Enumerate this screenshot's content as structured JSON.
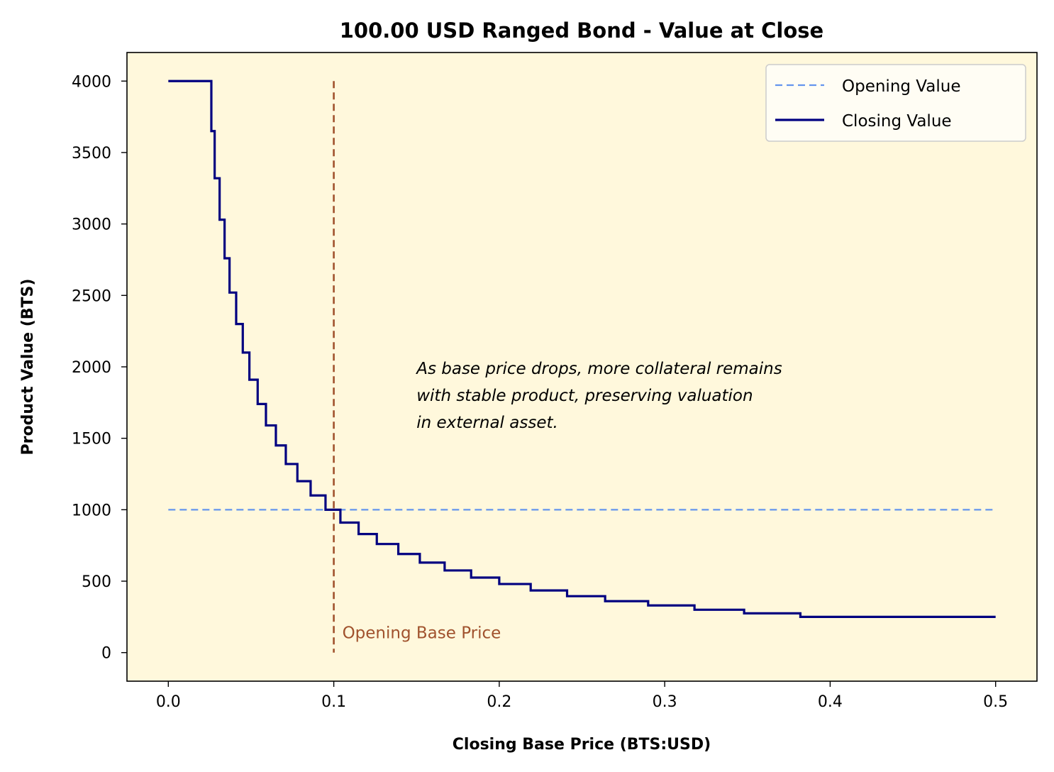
{
  "chart_data": {
    "type": "line",
    "title": "100.00 USD Ranged Bond - Value at Close",
    "xlabel": "Closing Base Price (BTS:USD)",
    "ylabel": "Product Value (BTS)",
    "xlim": [
      -0.025,
      0.525
    ],
    "ylim": [
      -200,
      4200
    ],
    "x_ticks": [
      0.0,
      0.1,
      0.2,
      0.3,
      0.4,
      0.5
    ],
    "x_tick_labels": [
      "0.0",
      "0.1",
      "0.2",
      "0.3",
      "0.4",
      "0.5"
    ],
    "y_ticks": [
      0,
      500,
      1000,
      1500,
      2000,
      2500,
      3000,
      3500,
      4000
    ],
    "y_tick_labels": [
      "0",
      "500",
      "1000",
      "1500",
      "2000",
      "2500",
      "3000",
      "3500",
      "4000"
    ],
    "legend": {
      "placement": "top-right",
      "entries": [
        "Opening Value",
        "Closing Value"
      ]
    },
    "background_color": "#fff8dc",
    "grid": false,
    "series": [
      {
        "name": "Opening Value",
        "style": "dashed",
        "color": "#6495ed",
        "x": [
          0.0,
          0.5
        ],
        "y": [
          1000,
          1000
        ]
      },
      {
        "name": "Closing Value",
        "style": "steps-post",
        "color": "#000080",
        "x": [
          0.0,
          0.026,
          0.028,
          0.031,
          0.034,
          0.037,
          0.041,
          0.045,
          0.049,
          0.054,
          0.059,
          0.065,
          0.071,
          0.078,
          0.086,
          0.095,
          0.104,
          0.115,
          0.126,
          0.139,
          0.152,
          0.167,
          0.183,
          0.2,
          0.219,
          0.241,
          0.264,
          0.29,
          0.318,
          0.348,
          0.382,
          0.5
        ],
        "y": [
          4000,
          3650,
          3320,
          3030,
          2760,
          2520,
          2300,
          2100,
          1910,
          1740,
          1590,
          1450,
          1320,
          1200,
          1100,
          1000,
          910,
          830,
          760,
          690,
          630,
          575,
          525,
          480,
          435,
          395,
          360,
          330,
          300,
          275,
          250,
          250
        ]
      }
    ],
    "vertical_line": {
      "x": 0.1,
      "y_range": [
        0,
        4000
      ],
      "style": "dashed",
      "color": "#a0522d",
      "label": "Opening Base Price"
    },
    "annotation": {
      "lines": [
        "As base price drops, more collateral remains",
        "with stable product, preserving valuation",
        "in external asset."
      ],
      "x": 0.15,
      "y": 1950
    }
  }
}
